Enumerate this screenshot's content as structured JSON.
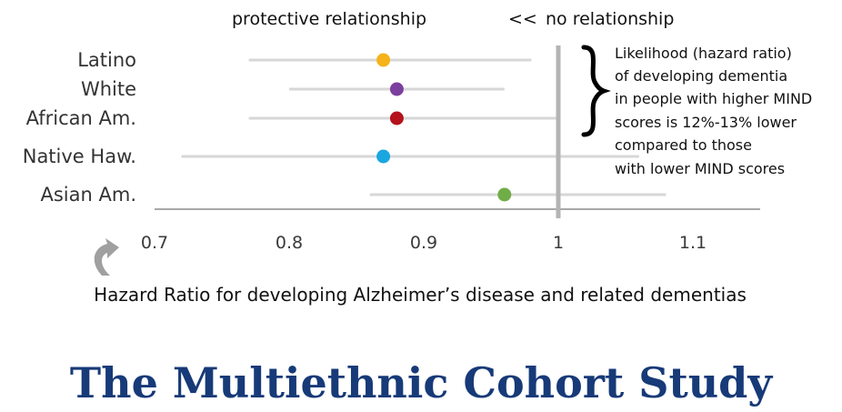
{
  "header": {
    "left": "protective relationship",
    "sep": "<<",
    "right": "no relationship"
  },
  "annotation": {
    "lines": [
      "Likelihood (hazard ratio)",
      "of developing dementia",
      "in people with higher MIND",
      "scores is 12%-13% lower",
      "compared to those",
      "with lower MIND scores"
    ]
  },
  "title": "The Multiethnic Cohort Study",
  "colors": {
    "title": "#173a78",
    "whisker": "#d7d7d7",
    "axis": "#a8a8a8",
    "refline": "#b4b4b4",
    "arrow": "#a0a0a0"
  },
  "chart_data": {
    "type": "scatter",
    "orientation": "horizontal",
    "xlabel": "Hazard Ratio for developing Alzheimer’s disease and related dementias",
    "ylabel": "",
    "xlim": [
      0.7,
      1.15
    ],
    "xticks": [
      0.7,
      0.8,
      0.9,
      1.0,
      1.1
    ],
    "xtick_labels": [
      "0.7",
      "0.8",
      "0.9",
      "1",
      "1.1"
    ],
    "reference_line": 1.0,
    "grid": false,
    "points": [
      {
        "label": "Latino",
        "value": 0.87,
        "ci_low": 0.77,
        "ci_high": 0.98,
        "color": "#f5b21b"
      },
      {
        "label": "White",
        "value": 0.88,
        "ci_low": 0.8,
        "ci_high": 0.96,
        "color": "#7b3f9e"
      },
      {
        "label": "African Am.",
        "value": 0.88,
        "ci_low": 0.77,
        "ci_high": 1.0,
        "color": "#b5121b"
      },
      {
        "label": "Native Haw.",
        "value": 0.87,
        "ci_low": 0.72,
        "ci_high": 1.06,
        "color": "#1aa7e0"
      },
      {
        "label": "Asian Am.",
        "value": 0.96,
        "ci_low": 0.86,
        "ci_high": 1.08,
        "color": "#70ad47"
      }
    ]
  }
}
